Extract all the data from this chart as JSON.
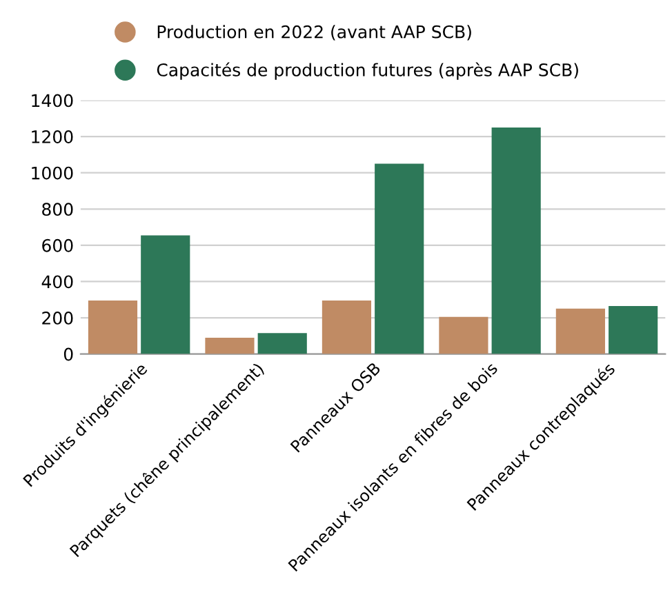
{
  "chart_data": {
    "type": "bar",
    "categories": [
      "Produits d'ingénierie",
      "Parquets (chêne principalement)",
      "Panneaux OSB",
      "Panneaux isolants en fibres de bois",
      "Panneaux contreplaqués"
    ],
    "series": [
      {
        "name": "Production en 2022 (avant AAP SCB)",
        "color": "#c08b64",
        "values": [
          295,
          90,
          295,
          205,
          250
        ]
      },
      {
        "name": "Capacités de production futures (après AAP SCB)",
        "color": "#2d7858",
        "values": [
          655,
          115,
          1050,
          1250,
          265
        ]
      }
    ],
    "ylim": [
      0,
      1400
    ],
    "yticks": [
      0,
      200,
      400,
      600,
      800,
      1000,
      1200,
      1400
    ],
    "grid": "y",
    "legend": "top"
  }
}
